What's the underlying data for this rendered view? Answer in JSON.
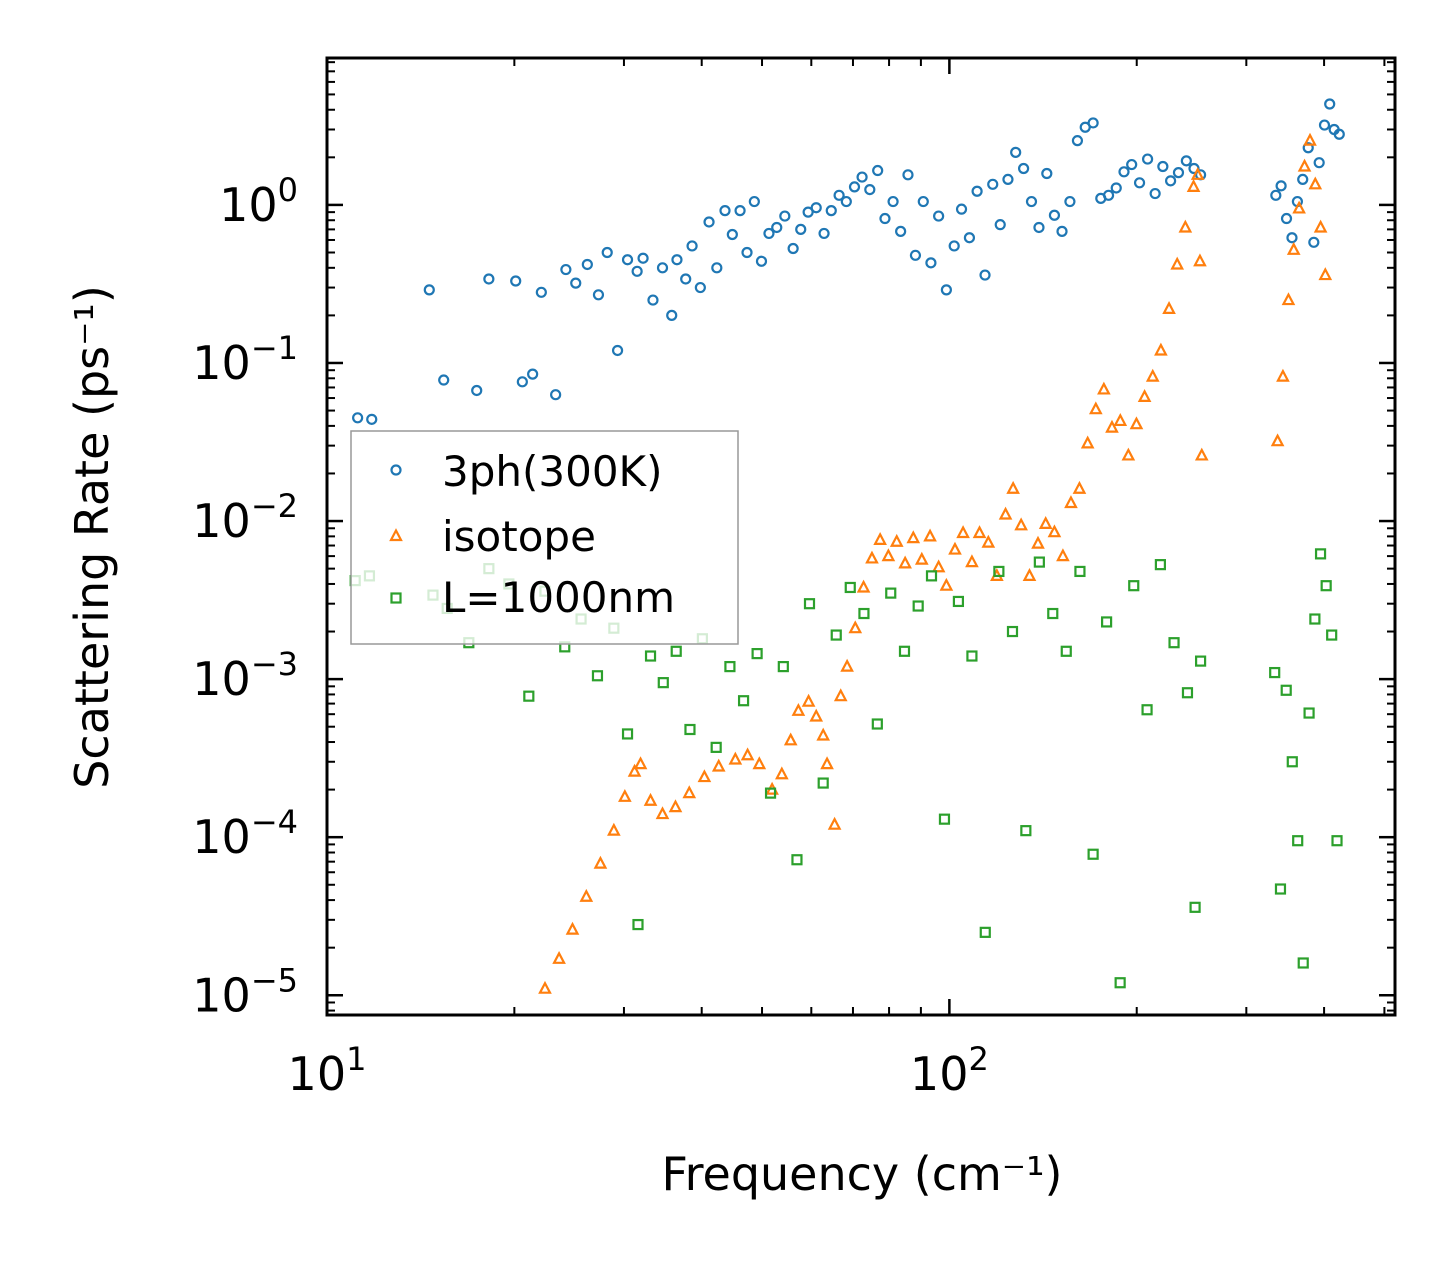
{
  "chart_data": {
    "type": "scatter",
    "x_scale": "log",
    "y_scale": "log",
    "xlabel": "Frequency (cm⁻¹)",
    "ylabel": "Scattering Rate (ps⁻¹)",
    "xlim": [
      10,
      520
    ],
    "ylim": [
      7.5e-06,
      8.5
    ],
    "x_major_ticks": [
      10,
      100
    ],
    "x_tick_labels": [
      {
        "value": 10,
        "base": "10",
        "exp": "1"
      },
      {
        "value": 100,
        "base": "10",
        "exp": "2"
      }
    ],
    "y_tick_labels": [
      {
        "value": 1,
        "base": "10",
        "exp": "0"
      },
      {
        "value": 0.1,
        "base": "10",
        "exp": "−1"
      },
      {
        "value": 0.01,
        "base": "10",
        "exp": "−2"
      },
      {
        "value": 0.001,
        "base": "10",
        "exp": "−3"
      },
      {
        "value": 0.0001,
        "base": "10",
        "exp": "−4"
      },
      {
        "value": 1e-05,
        "base": "10",
        "exp": "−5"
      }
    ],
    "legend": {
      "position": "center-left"
    },
    "series": [
      {
        "name": "3ph(300K)",
        "marker": "circle",
        "color": "#1f77b4",
        "points": [
          [
            11.2,
            0.045
          ],
          [
            11.8,
            0.044
          ],
          [
            14.6,
            0.29
          ],
          [
            15.4,
            0.078
          ],
          [
            17.4,
            0.067
          ],
          [
            18.2,
            0.34
          ],
          [
            20.1,
            0.33
          ],
          [
            20.6,
            0.076
          ],
          [
            21.4,
            0.085
          ],
          [
            22.1,
            0.28
          ],
          [
            23.3,
            0.063
          ],
          [
            24.2,
            0.39
          ],
          [
            25.1,
            0.32
          ],
          [
            26.2,
            0.42
          ],
          [
            27.3,
            0.27
          ],
          [
            28.2,
            0.5
          ],
          [
            29.3,
            0.12
          ],
          [
            30.4,
            0.45
          ],
          [
            31.5,
            0.38
          ],
          [
            32.2,
            0.46
          ],
          [
            33.4,
            0.25
          ],
          [
            34.6,
            0.4
          ],
          [
            35.8,
            0.2
          ],
          [
            36.5,
            0.45
          ],
          [
            37.7,
            0.34
          ],
          [
            38.6,
            0.55
          ],
          [
            39.8,
            0.3
          ],
          [
            41.1,
            0.78
          ],
          [
            42.3,
            0.4
          ],
          [
            43.6,
            0.92
          ],
          [
            44.8,
            0.65
          ],
          [
            46.1,
            0.92
          ],
          [
            47.3,
            0.5
          ],
          [
            48.6,
            1.05
          ],
          [
            49.9,
            0.44
          ],
          [
            51.3,
            0.66
          ],
          [
            52.8,
            0.72
          ],
          [
            54.4,
            0.85
          ],
          [
            56.1,
            0.53
          ],
          [
            57.7,
            0.7
          ],
          [
            59.3,
            0.9
          ],
          [
            61.1,
            0.96
          ],
          [
            62.9,
            0.66
          ],
          [
            64.6,
            0.92
          ],
          [
            66.5,
            1.15
          ],
          [
            68.3,
            1.05
          ],
          [
            70.4,
            1.3
          ],
          [
            72.4,
            1.5
          ],
          [
            74.5,
            1.25
          ],
          [
            76.7,
            1.65
          ],
          [
            78.8,
            0.82
          ],
          [
            81.2,
            1.05
          ],
          [
            83.5,
            0.68
          ],
          [
            85.8,
            1.55
          ],
          [
            88.2,
            0.48
          ],
          [
            90.8,
            1.05
          ],
          [
            93.4,
            0.43
          ],
          [
            96.1,
            0.85
          ],
          [
            98.9,
            0.29
          ],
          [
            101.8,
            0.55
          ],
          [
            104.6,
            0.94
          ],
          [
            107.7,
            0.62
          ],
          [
            110.8,
            1.22
          ],
          [
            114.1,
            0.36
          ],
          [
            117.4,
            1.35
          ],
          [
            120.7,
            0.75
          ],
          [
            124.2,
            1.45
          ],
          [
            127.8,
            2.15
          ],
          [
            131.6,
            1.7
          ],
          [
            135.5,
            1.05
          ],
          [
            139.3,
            0.72
          ],
          [
            143.4,
            1.58
          ],
          [
            147.5,
            0.86
          ],
          [
            151.7,
            0.68
          ],
          [
            156.2,
            1.05
          ],
          [
            160.6,
            2.55
          ],
          [
            165.3,
            3.1
          ],
          [
            170.2,
            3.3
          ],
          [
            175.1,
            1.1
          ],
          [
            180.2,
            1.15
          ],
          [
            185.4,
            1.28
          ],
          [
            190.8,
            1.62
          ],
          [
            196.3,
            1.8
          ],
          [
            202.1,
            1.38
          ],
          [
            208.2,
            1.95
          ],
          [
            214.1,
            1.18
          ],
          [
            220.3,
            1.75
          ],
          [
            226.7,
            1.42
          ],
          [
            233.4,
            1.6
          ],
          [
            240.3,
            1.9
          ],
          [
            247.2,
            1.7
          ],
          [
            253.3,
            1.55
          ],
          [
            334.6,
            1.15
          ],
          [
            341.2,
            1.32
          ],
          [
            348.1,
            0.82
          ],
          [
            355.2,
            0.62
          ],
          [
            362.4,
            1.05
          ],
          [
            369.6,
            1.45
          ],
          [
            377.2,
            2.3
          ],
          [
            385.1,
            0.58
          ],
          [
            392.8,
            1.85
          ],
          [
            400.6,
            3.2
          ],
          [
            408.4,
            4.35
          ],
          [
            415.2,
            3.0
          ],
          [
            423.1,
            2.8
          ]
        ]
      },
      {
        "name": "isotope",
        "marker": "triangle",
        "color": "#ff7f0e",
        "points": [
          [
            22.4,
            1.1e-05
          ],
          [
            23.6,
            1.7e-05
          ],
          [
            24.8,
            2.6e-05
          ],
          [
            26.1,
            4.2e-05
          ],
          [
            27.5,
            6.8e-05
          ],
          [
            28.9,
            0.00011
          ],
          [
            30.1,
            0.00018
          ],
          [
            31.2,
            0.00026
          ],
          [
            31.9,
            0.00029
          ],
          [
            33.1,
            0.00017
          ],
          [
            34.6,
            0.00014
          ],
          [
            36.3,
            0.000155
          ],
          [
            38.2,
            0.00019
          ],
          [
            40.4,
            0.00024
          ],
          [
            42.6,
            0.00028
          ],
          [
            45.3,
            0.00031
          ],
          [
            47.4,
            0.00033
          ],
          [
            49.5,
            0.00029
          ],
          [
            51.9,
            0.0002
          ],
          [
            53.8,
            0.00025
          ],
          [
            55.6,
            0.00041
          ],
          [
            57.2,
            0.00063
          ],
          [
            59.4,
            0.00072
          ],
          [
            61.1,
            0.00058
          ],
          [
            62.7,
            0.00044
          ],
          [
            63.6,
            0.00029
          ],
          [
            65.4,
            0.00012
          ],
          [
            66.9,
            0.00078
          ],
          [
            68.5,
            0.0012
          ],
          [
            70.6,
            0.0021
          ],
          [
            72.8,
            0.0038
          ],
          [
            75.1,
            0.0058
          ],
          [
            77.4,
            0.0076
          ],
          [
            79.8,
            0.006
          ],
          [
            82.3,
            0.0074
          ],
          [
            84.9,
            0.0054
          ],
          [
            87.5,
            0.0078
          ],
          [
            90.3,
            0.0057
          ],
          [
            93.1,
            0.008
          ],
          [
            96.1,
            0.0051
          ],
          [
            98.9,
            0.0039
          ],
          [
            102.1,
            0.0066
          ],
          [
            105.2,
            0.0084
          ],
          [
            108.7,
            0.0055
          ],
          [
            111.8,
            0.0084
          ],
          [
            115.5,
            0.0073
          ],
          [
            119.2,
            0.0045
          ],
          [
            123.1,
            0.011
          ],
          [
            126.6,
            0.016
          ],
          [
            130.4,
            0.0094
          ],
          [
            134.5,
            0.0045
          ],
          [
            138.8,
            0.0072
          ],
          [
            142.8,
            0.0096
          ],
          [
            147.5,
            0.0085
          ],
          [
            152.2,
            0.006
          ],
          [
            156.8,
            0.013
          ],
          [
            161.8,
            0.016
          ],
          [
            166.8,
            0.031
          ],
          [
            171.9,
            0.051
          ],
          [
            177.1,
            0.068
          ],
          [
            182.5,
            0.039
          ],
          [
            188.2,
            0.043
          ],
          [
            193.9,
            0.026
          ],
          [
            199.8,
            0.041
          ],
          [
            205.9,
            0.061
          ],
          [
            212.2,
            0.082
          ],
          [
            218.7,
            0.12
          ],
          [
            225.4,
            0.22
          ],
          [
            232.3,
            0.42
          ],
          [
            239.4,
            0.72
          ],
          [
            246.8,
            1.3
          ],
          [
            250.6,
            1.55
          ],
          [
            252.7,
            0.44
          ],
          [
            254.4,
            0.026
          ],
          [
            336.8,
            0.032
          ],
          [
            343.5,
            0.082
          ],
          [
            350.6,
            0.25
          ],
          [
            357.5,
            0.52
          ],
          [
            364.7,
            0.95
          ],
          [
            372.1,
            1.75
          ],
          [
            379.7,
            2.55
          ],
          [
            387.2,
            1.35
          ],
          [
            394.9,
            0.72
          ],
          [
            401.8,
            0.36
          ]
        ]
      },
      {
        "name": "L=1000nm",
        "marker": "square",
        "color": "#2ca02c",
        "points": [
          [
            11.1,
            0.0042
          ],
          [
            11.7,
            0.0045
          ],
          [
            14.8,
            0.0034
          ],
          [
            15.6,
            0.0028
          ],
          [
            16.9,
            0.0017
          ],
          [
            18.2,
            0.005
          ],
          [
            19.6,
            0.004
          ],
          [
            21.1,
            0.00078
          ],
          [
            22.4,
            0.0036
          ],
          [
            24.1,
            0.0016
          ],
          [
            25.6,
            0.0024
          ],
          [
            27.2,
            0.00105
          ],
          [
            28.9,
            0.0021
          ],
          [
            30.4,
            0.00045
          ],
          [
            31.6,
            2.8e-05
          ],
          [
            33.1,
            0.0014
          ],
          [
            34.7,
            0.00095
          ],
          [
            36.4,
            0.0015
          ],
          [
            38.3,
            0.00048
          ],
          [
            40.1,
            0.0018
          ],
          [
            42.2,
            0.00037
          ],
          [
            44.4,
            0.0012
          ],
          [
            46.7,
            0.00073
          ],
          [
            49.1,
            0.00145
          ],
          [
            51.6,
            0.00019
          ],
          [
            54.1,
            0.0012
          ],
          [
            56.9,
            7.2e-05
          ],
          [
            59.6,
            0.003
          ],
          [
            62.7,
            0.00022
          ],
          [
            65.8,
            0.0019
          ],
          [
            69.3,
            0.0038
          ],
          [
            72.9,
            0.0026
          ],
          [
            76.6,
            0.00052
          ],
          [
            80.5,
            0.0035
          ],
          [
            84.7,
            0.0015
          ],
          [
            89.1,
            0.0029
          ],
          [
            93.6,
            0.0045
          ],
          [
            98.2,
            0.00013
          ],
          [
            103.4,
            0.0031
          ],
          [
            108.7,
            0.0014
          ],
          [
            114.2,
            2.5e-05
          ],
          [
            120.1,
            0.0048
          ],
          [
            126.3,
            0.002
          ],
          [
            132.7,
            0.00011
          ],
          [
            139.5,
            0.0055
          ],
          [
            146.6,
            0.0026
          ],
          [
            154.1,
            0.0015
          ],
          [
            162.1,
            0.0048
          ],
          [
            170.2,
            7.8e-05
          ],
          [
            178.9,
            0.0023
          ],
          [
            188.1,
            1.2e-05
          ],
          [
            197.8,
            0.0039
          ],
          [
            207.8,
            0.00064
          ],
          [
            218.3,
            0.0053
          ],
          [
            229.6,
            0.0017
          ],
          [
            241.3,
            0.00082
          ],
          [
            248.2,
            3.6e-05
          ],
          [
            253.3,
            0.0013
          ],
          [
            333.2,
            0.0011
          ],
          [
            340.4,
            4.7e-05
          ],
          [
            347.7,
            0.00085
          ],
          [
            355.6,
            0.0003
          ],
          [
            362.8,
            9.5e-05
          ],
          [
            370.3,
            1.6e-05
          ],
          [
            378.4,
            0.00061
          ],
          [
            386.6,
            0.0024
          ],
          [
            394.8,
            0.0062
          ],
          [
            403.1,
            0.0039
          ],
          [
            411.4,
            0.0019
          ],
          [
            419.6,
            9.5e-05
          ]
        ]
      }
    ]
  }
}
